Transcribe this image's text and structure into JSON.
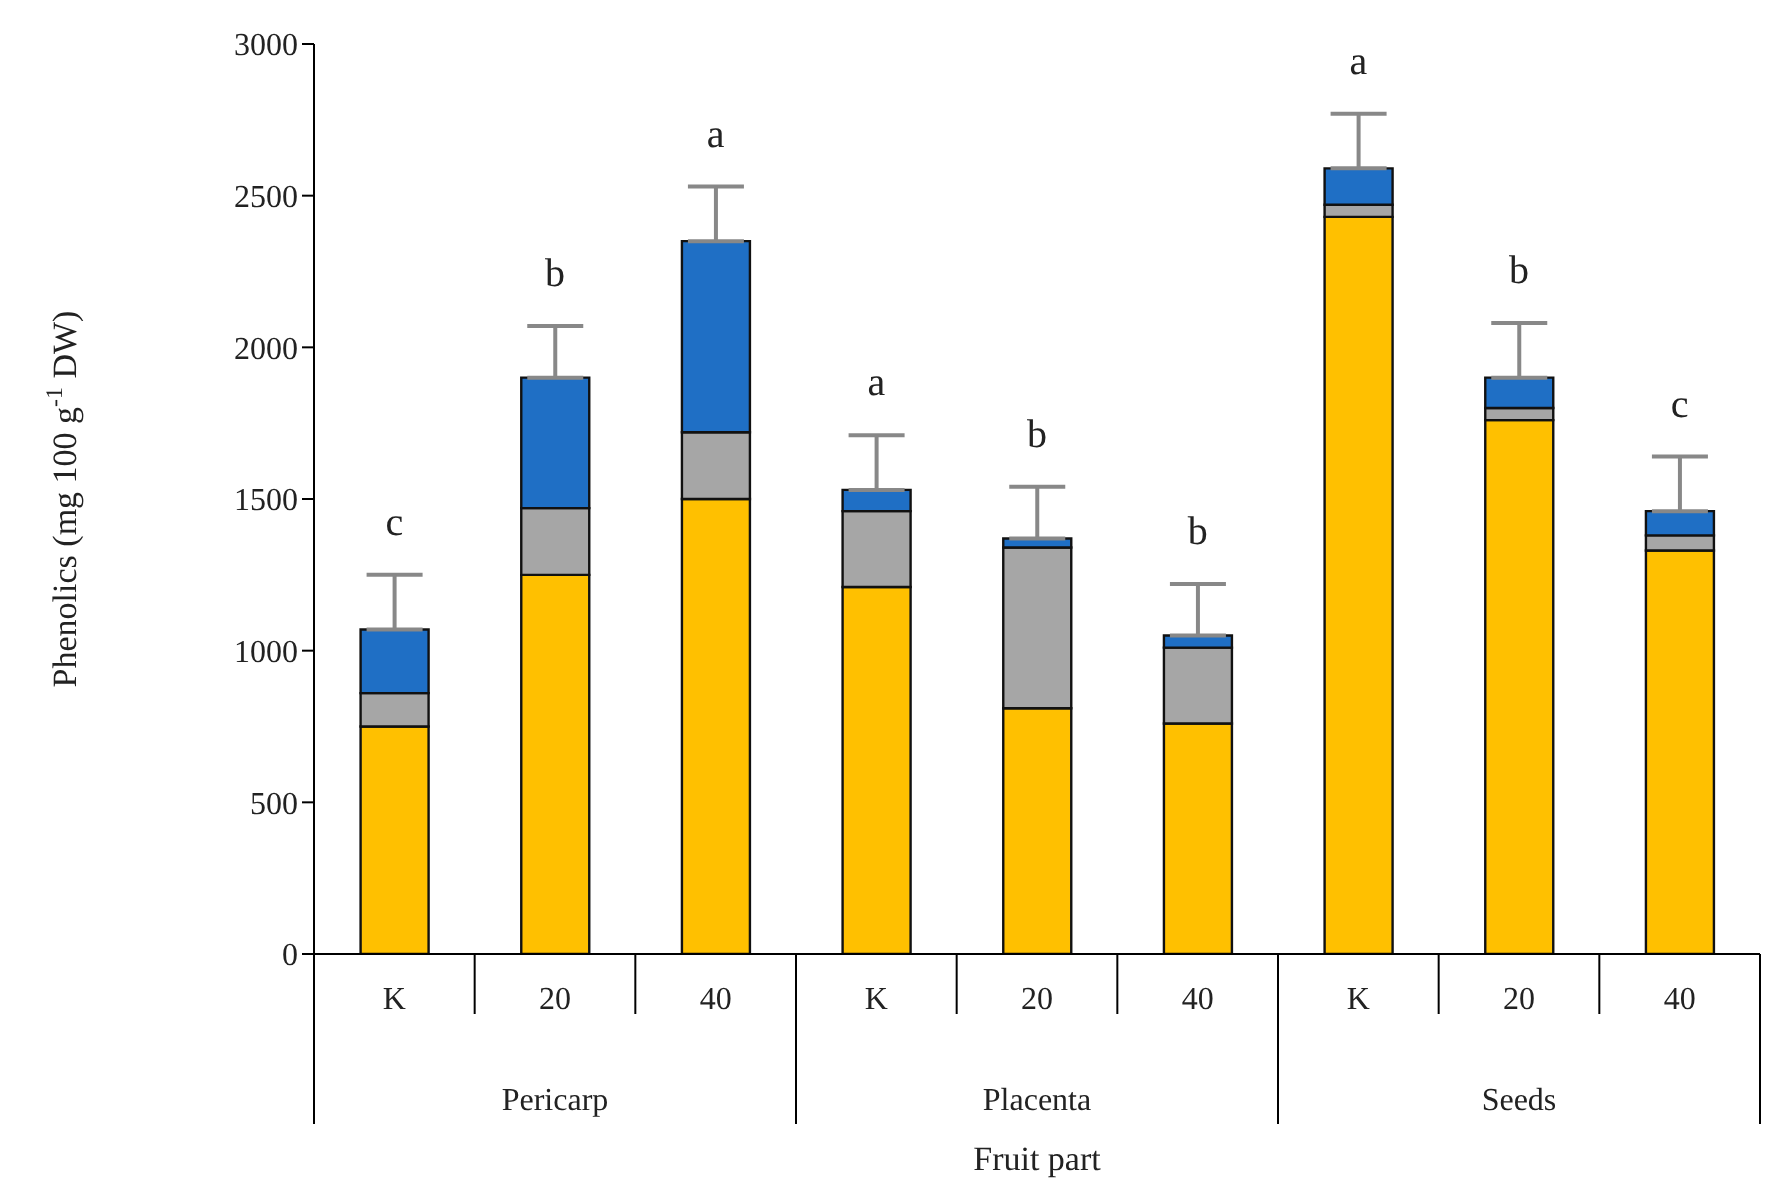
{
  "chart_data": {
    "type": "bar",
    "stacked": true,
    "xlabel": "Fruit part",
    "ylabel": "Phenolics (mg 100 g$^{-1}$ DW)",
    "categories": [
      "K",
      "20",
      "40",
      "K",
      "20",
      "40",
      "K",
      "20",
      "40"
    ],
    "series": [
      {
        "color": "#ffc000",
        "values": [
          750,
          1250,
          1500,
          1210,
          810,
          760,
          2430,
          1760,
          1330
        ]
      },
      {
        "color": "#a6a6a6",
        "values": [
          110,
          220,
          220,
          250,
          530,
          250,
          40,
          40,
          50
        ]
      },
      {
        "color": "#1f6fc5",
        "values": [
          210,
          430,
          630,
          70,
          30,
          40,
          120,
          100,
          80
        ],
        "errors": [
          [
            1070,
            1250
          ],
          [
            1900,
            2070
          ],
          [
            2350,
            2530
          ],
          [
            1530,
            1710
          ],
          [
            1370,
            1540
          ],
          [
            1050,
            1220
          ],
          [
            2590,
            2770
          ],
          [
            1900,
            2080
          ],
          [
            1460,
            1640
          ]
        ]
      }
    ],
    "ylim": [
      0,
      3000
    ],
    "yticks": [
      0,
      500,
      1000,
      1500,
      2000,
      2500,
      3000
    ],
    "annotations": [
      "c",
      "b",
      "a",
      "a",
      "b",
      "b",
      "a",
      "b",
      "c",
      "Pericarp",
      "Placenta",
      "Seeds"
    ]
  }
}
